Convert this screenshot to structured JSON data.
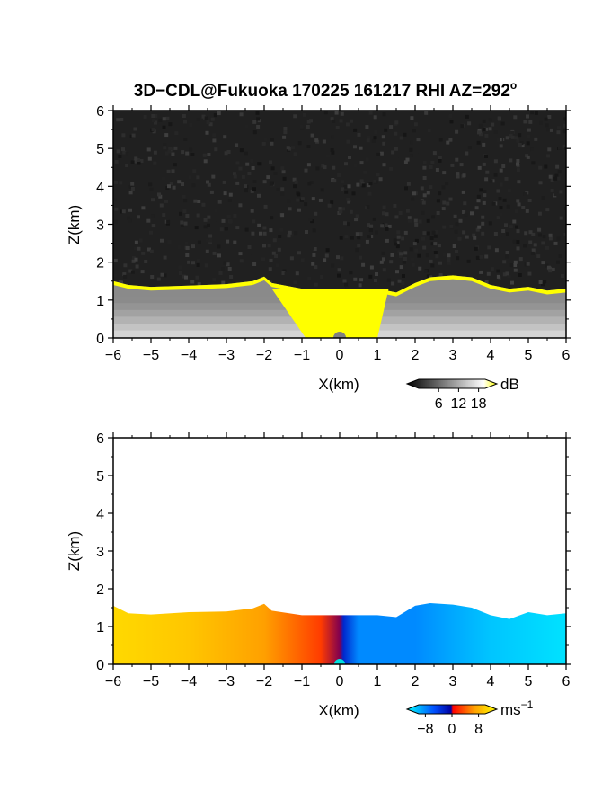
{
  "chart_data": [
    {
      "type": "heatmap",
      "title": "3D−CDL@Fukuoka 170225 161217 RHI AZ=292",
      "title_suffix": "o",
      "xlabel": "X(km)",
      "ylabel": "Z(km)",
      "xlim": [
        -6,
        6
      ],
      "ylim": [
        0,
        6
      ],
      "x_ticks": [
        "−6",
        "−5",
        "−4",
        "−3",
        "−2",
        "−1",
        "0",
        "1",
        "2",
        "3",
        "4",
        "5",
        "6"
      ],
      "y_ticks": [
        "0",
        "1",
        "2",
        "3",
        "4",
        "5",
        "6"
      ],
      "variable": "signal-to-noise ratio",
      "colorbar": {
        "unit": "dB",
        "ticks": [
          "6",
          "12",
          "18"
        ],
        "tick_values": [
          6,
          12,
          18
        ],
        "range": [
          0,
          20
        ],
        "colors": [
          "#000000",
          "#ffffff",
          "#ffff00"
        ]
      },
      "boundary_height_km": [
        [
          -6.0,
          1.5
        ],
        [
          -5.6,
          1.4
        ],
        [
          -5.0,
          1.35
        ],
        [
          -4.0,
          1.38
        ],
        [
          -3.0,
          1.42
        ],
        [
          -2.3,
          1.5
        ],
        [
          -2.0,
          1.62
        ],
        [
          -1.8,
          1.45
        ],
        [
          -1.0,
          1.3
        ],
        [
          0.0,
          1.28
        ],
        [
          1.0,
          1.3
        ],
        [
          1.5,
          1.2
        ],
        [
          2.0,
          1.45
        ],
        [
          2.4,
          1.6
        ],
        [
          3.0,
          1.65
        ],
        [
          3.5,
          1.6
        ],
        [
          4.0,
          1.4
        ],
        [
          4.5,
          1.3
        ],
        [
          5.0,
          1.35
        ],
        [
          5.5,
          1.25
        ],
        [
          6.0,
          1.3
        ]
      ],
      "saturated_region_km": {
        "x": [
          -1.8,
          1.3
        ],
        "z_top": 1.3
      }
    },
    {
      "type": "heatmap",
      "xlabel": "X(km)",
      "ylabel": "Z(km)",
      "xlim": [
        -6,
        6
      ],
      "ylim": [
        0,
        6
      ],
      "x_ticks": [
        "−6",
        "−5",
        "−4",
        "−3",
        "−2",
        "−1",
        "0",
        "1",
        "2",
        "3",
        "4",
        "5",
        "6"
      ],
      "y_ticks": [
        "0",
        "1",
        "2",
        "3",
        "4",
        "5",
        "6"
      ],
      "variable": "radial velocity",
      "colorbar": {
        "unit": "ms",
        "unit_exponent": "−1",
        "ticks": [
          "−8",
          "0",
          "8"
        ],
        "tick_values": [
          -8,
          0,
          8
        ],
        "range": [
          -10,
          10
        ],
        "colors": [
          "#00ffff",
          "#0050ff",
          "#0000a0",
          "#ff0000",
          "#ffa000",
          "#ffff00"
        ]
      },
      "boundary_height_km": [
        [
          -6.0,
          1.55
        ],
        [
          -5.6,
          1.35
        ],
        [
          -5.0,
          1.32
        ],
        [
          -4.0,
          1.38
        ],
        [
          -3.0,
          1.4
        ],
        [
          -2.3,
          1.48
        ],
        [
          -2.0,
          1.6
        ],
        [
          -1.8,
          1.42
        ],
        [
          -1.0,
          1.3
        ],
        [
          0.0,
          1.3
        ],
        [
          1.0,
          1.3
        ],
        [
          1.5,
          1.25
        ],
        [
          2.0,
          1.55
        ],
        [
          2.4,
          1.62
        ],
        [
          3.0,
          1.58
        ],
        [
          3.5,
          1.5
        ],
        [
          4.0,
          1.3
        ],
        [
          4.5,
          1.2
        ],
        [
          5.0,
          1.38
        ],
        [
          5.5,
          1.3
        ],
        [
          6.0,
          1.35
        ]
      ],
      "velocity_by_x_ms": [
        [
          -6,
          8
        ],
        [
          -4,
          7
        ],
        [
          -2,
          5
        ],
        [
          -0.5,
          2
        ],
        [
          0,
          0
        ],
        [
          0.1,
          -2
        ],
        [
          0.5,
          -6
        ],
        [
          2,
          -6
        ],
        [
          3,
          -7
        ],
        [
          4,
          -8
        ],
        [
          6,
          -9
        ]
      ]
    }
  ]
}
